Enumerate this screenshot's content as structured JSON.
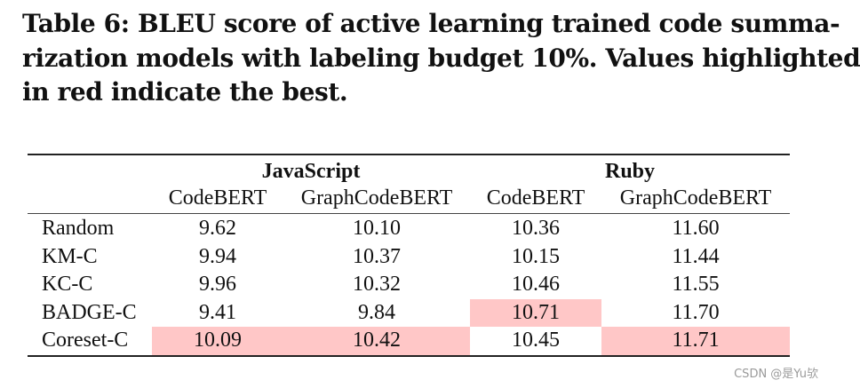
{
  "caption": {
    "lines": [
      "Table 6: BLEU score of active learning trained code summa-",
      "rization models with labeling budget 10%. Values highlighted",
      "in red indicate the best."
    ]
  },
  "table": {
    "groups": [
      "JavaScript",
      "Ruby"
    ],
    "subheaders": [
      "CodeBERT",
      "GraphCodeBERT",
      "CodeBERT",
      "GraphCodeBERT"
    ],
    "rows": [
      {
        "method": "Random",
        "values": [
          "9.62",
          "10.10",
          "10.36",
          "11.60"
        ]
      },
      {
        "method": "KM-C",
        "values": [
          "9.94",
          "10.37",
          "10.15",
          "11.44"
        ]
      },
      {
        "method": "KC-C",
        "values": [
          "9.96",
          "10.32",
          "10.46",
          "11.55"
        ]
      },
      {
        "method": "BADGE-C",
        "values": [
          "9.41",
          "9.84",
          "10.71",
          "11.70"
        ]
      },
      {
        "method": "Coreset-C",
        "values": [
          "10.09",
          "10.42",
          "10.45",
          "11.71"
        ]
      }
    ],
    "highlight_color": "#ffc7c7"
  },
  "watermark": "CSDN @是Yu欤"
}
